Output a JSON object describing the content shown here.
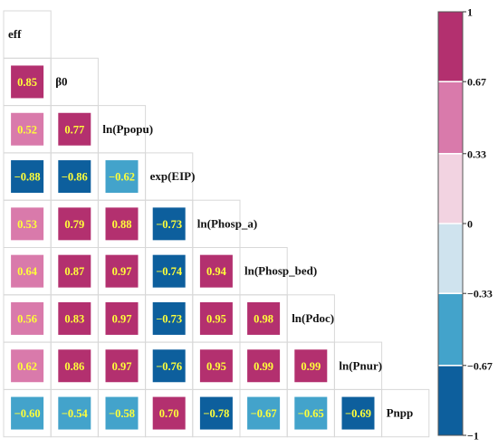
{
  "chart_data": {
    "type": "heatmap",
    "variables": [
      "eff",
      "β0",
      "ln(Ppopu)",
      "exp(EIP)",
      "ln(Phosp_a)",
      "ln(Phosp_bed)",
      "ln(Pdoc)",
      "ln(Pnur)",
      "Pnpp"
    ],
    "cells": [
      {
        "row": 1,
        "col": 0,
        "value": 0.85,
        "label": "0.85"
      },
      {
        "row": 2,
        "col": 0,
        "value": 0.52,
        "label": "0.52"
      },
      {
        "row": 2,
        "col": 1,
        "value": 0.77,
        "label": "0.77"
      },
      {
        "row": 3,
        "col": 0,
        "value": -0.88,
        "label": "−0.88"
      },
      {
        "row": 3,
        "col": 1,
        "value": -0.86,
        "label": "−0.86"
      },
      {
        "row": 3,
        "col": 2,
        "value": -0.62,
        "label": "−0.62"
      },
      {
        "row": 4,
        "col": 0,
        "value": 0.53,
        "label": "0.53"
      },
      {
        "row": 4,
        "col": 1,
        "value": 0.79,
        "label": "0.79"
      },
      {
        "row": 4,
        "col": 2,
        "value": 0.88,
        "label": "0.88"
      },
      {
        "row": 4,
        "col": 3,
        "value": -0.73,
        "label": "−0.73"
      },
      {
        "row": 5,
        "col": 0,
        "value": 0.64,
        "label": "0.64"
      },
      {
        "row": 5,
        "col": 1,
        "value": 0.87,
        "label": "0.87"
      },
      {
        "row": 5,
        "col": 2,
        "value": 0.97,
        "label": "0.97"
      },
      {
        "row": 5,
        "col": 3,
        "value": -0.74,
        "label": "−0.74"
      },
      {
        "row": 5,
        "col": 4,
        "value": 0.94,
        "label": "0.94"
      },
      {
        "row": 6,
        "col": 0,
        "value": 0.56,
        "label": "0.56"
      },
      {
        "row": 6,
        "col": 1,
        "value": 0.83,
        "label": "0.83"
      },
      {
        "row": 6,
        "col": 2,
        "value": 0.97,
        "label": "0.97"
      },
      {
        "row": 6,
        "col": 3,
        "value": -0.73,
        "label": "−0.73"
      },
      {
        "row": 6,
        "col": 4,
        "value": 0.95,
        "label": "0.95"
      },
      {
        "row": 6,
        "col": 5,
        "value": 0.98,
        "label": "0.98"
      },
      {
        "row": 7,
        "col": 0,
        "value": 0.62,
        "label": "0.62"
      },
      {
        "row": 7,
        "col": 1,
        "value": 0.86,
        "label": "0.86"
      },
      {
        "row": 7,
        "col": 2,
        "value": 0.97,
        "label": "0.97"
      },
      {
        "row": 7,
        "col": 3,
        "value": -0.76,
        "label": "−0.76"
      },
      {
        "row": 7,
        "col": 4,
        "value": 0.95,
        "label": "0.95"
      },
      {
        "row": 7,
        "col": 5,
        "value": 0.99,
        "label": "0.99"
      },
      {
        "row": 7,
        "col": 6,
        "value": 0.99,
        "label": "0.99"
      },
      {
        "row": 8,
        "col": 0,
        "value": -0.6,
        "label": "−0.60"
      },
      {
        "row": 8,
        "col": 1,
        "value": -0.54,
        "label": "−0.54"
      },
      {
        "row": 8,
        "col": 2,
        "value": -0.58,
        "label": "−0.58"
      },
      {
        "row": 8,
        "col": 3,
        "value": 0.7,
        "label": "0.70"
      },
      {
        "row": 8,
        "col": 4,
        "value": -0.78,
        "label": "−0.78"
      },
      {
        "row": 8,
        "col": 5,
        "value": -0.67,
        "label": "−0.67"
      },
      {
        "row": 8,
        "col": 6,
        "value": -0.65,
        "label": "−0.65"
      },
      {
        "row": 8,
        "col": 7,
        "value": -0.69,
        "label": "−0.69"
      }
    ],
    "colorbar": {
      "range": [
        -1,
        1
      ],
      "ticks": [
        {
          "value": 1,
          "label": "1"
        },
        {
          "value": 0.67,
          "label": "0.67"
        },
        {
          "value": 0.33,
          "label": "0.33"
        },
        {
          "value": 0,
          "label": "0"
        },
        {
          "value": -0.33,
          "label": "−0.33"
        },
        {
          "value": -0.67,
          "label": "−0.67"
        },
        {
          "value": -1,
          "label": "−1"
        }
      ],
      "bins": [
        {
          "min": 0.67,
          "max": 1.0,
          "color": "#b3306f"
        },
        {
          "min": 0.33,
          "max": 0.67,
          "color": "#d97aab"
        },
        {
          "min": 0.0,
          "max": 0.33,
          "color": "#f2d3e1"
        },
        {
          "min": -0.33,
          "max": 0.0,
          "color": "#cfe3ee"
        },
        {
          "min": -0.67,
          "max": -0.33,
          "color": "#43a3cb"
        },
        {
          "min": -1.0,
          "max": -0.67,
          "color": "#0d5f9d"
        }
      ]
    },
    "colors": {
      "value_text": "#ffff3a",
      "grid_line": "#d8d8d8"
    },
    "legend_position": "right"
  }
}
